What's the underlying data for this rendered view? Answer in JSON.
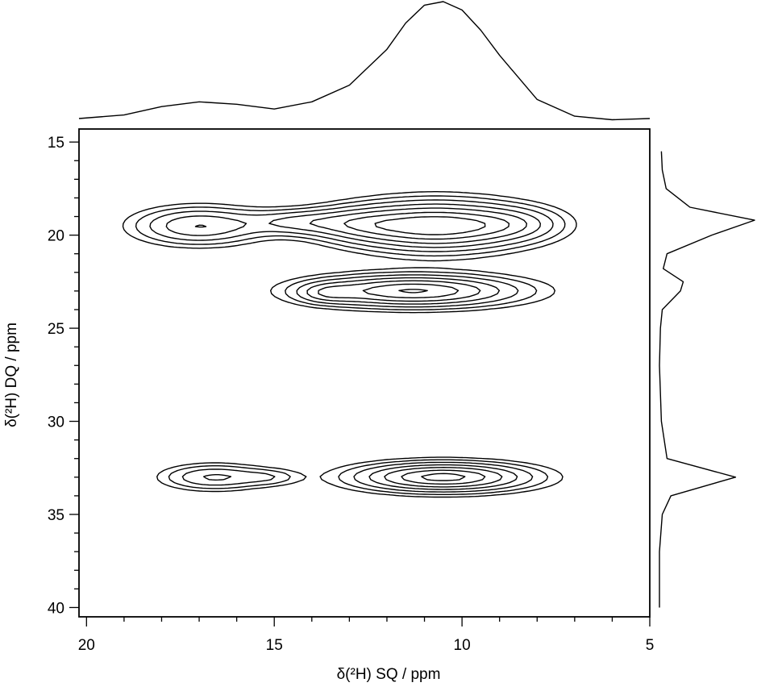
{
  "chart_data": {
    "type": "contour",
    "title": "",
    "xlabel": "δ(²H) SQ / ppm",
    "ylabel": "δ(²H) DQ / ppm",
    "xlim": [
      20.2,
      5.0
    ],
    "ylim": [
      14.3,
      40.5
    ],
    "x_axis_reversed": true,
    "y_axis_reversed": true,
    "x_ticks": [
      20,
      15,
      10,
      5
    ],
    "y_ticks": [
      15,
      20,
      25,
      30,
      35,
      40
    ],
    "x_tick_labels": [
      "20",
      "15",
      "10",
      "5"
    ],
    "y_tick_labels": [
      "15",
      "20",
      "25",
      "30",
      "35",
      "40"
    ],
    "grid": false,
    "peaks": [
      {
        "x": 17.0,
        "y": 19.5,
        "sx": 1.1,
        "sy": 0.65,
        "a": 0.55
      },
      {
        "x": 10.7,
        "y": 19.5,
        "sx": 1.5,
        "sy": 0.85,
        "a": 1.0
      },
      {
        "x": 14.4,
        "y": 19.3,
        "sx": 0.9,
        "sy": 0.45,
        "a": 0.35
      },
      {
        "x": 12.8,
        "y": 19.4,
        "sx": 0.9,
        "sy": 0.6,
        "a": 0.35
      },
      {
        "x": 8.6,
        "y": 19.4,
        "sx": 0.9,
        "sy": 0.6,
        "a": 0.3
      },
      {
        "x": 11.3,
        "y": 23.0,
        "sx": 1.8,
        "sy": 0.55,
        "a": 0.9
      },
      {
        "x": 13.6,
        "y": 23.1,
        "sx": 0.5,
        "sy": 0.35,
        "a": 0.25
      },
      {
        "x": 16.6,
        "y": 33.0,
        "sx": 0.9,
        "sy": 0.45,
        "a": 0.42
      },
      {
        "x": 15.1,
        "y": 33.0,
        "sx": 0.55,
        "sy": 0.3,
        "a": 0.18
      },
      {
        "x": 10.5,
        "y": 33.0,
        "sx": 1.5,
        "sy": 0.5,
        "a": 0.95
      }
    ],
    "contour_levels": [
      0.1,
      0.17,
      0.27,
      0.4,
      0.55,
      0.72,
      0.88
    ],
    "sq_projection": {
      "x": [
        20.2,
        19.0,
        18.0,
        17.0,
        16.0,
        15.0,
        14.0,
        13.0,
        12.0,
        11.5,
        11.0,
        10.5,
        10.0,
        9.5,
        9.0,
        8.0,
        7.0,
        6.0,
        5.0
      ],
      "intensity": [
        0.02,
        0.05,
        0.12,
        0.16,
        0.14,
        0.1,
        0.16,
        0.3,
        0.6,
        0.82,
        0.97,
        1.0,
        0.93,
        0.76,
        0.55,
        0.18,
        0.04,
        0.01,
        0.02
      ]
    },
    "dq_projection": {
      "y": [
        15.5,
        16.5,
        17.5,
        18.5,
        19.2,
        20.0,
        21.0,
        21.8,
        22.5,
        23.0,
        24.0,
        25.0,
        27.0,
        30.0,
        32.0,
        33.0,
        34.0,
        35.0,
        37.0,
        40.0
      ],
      "intensity": [
        0.02,
        0.03,
        0.07,
        0.32,
        1.0,
        0.55,
        0.08,
        0.04,
        0.25,
        0.22,
        0.03,
        0.01,
        0.0,
        0.02,
        0.08,
        0.8,
        0.12,
        0.03,
        0.0,
        0.0
      ]
    }
  }
}
